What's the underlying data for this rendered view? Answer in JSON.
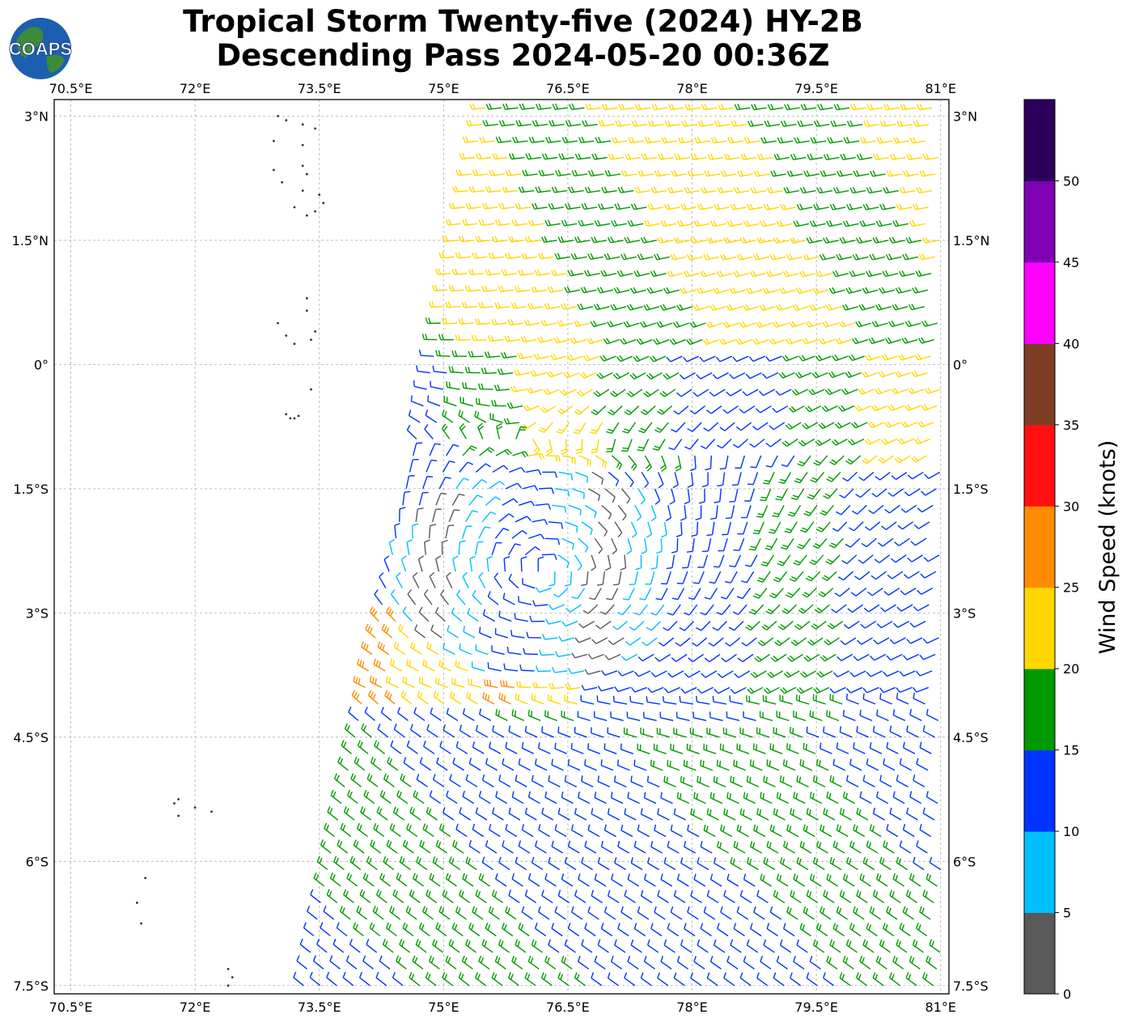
{
  "header": {
    "title_line1": "Tropical Storm Twenty-five (2024) HY-2B",
    "title_line2": "Descending Pass 2024-05-20 00:36Z",
    "logo_text": "COAPS"
  },
  "map": {
    "lon_ticks": [
      "70.5°E",
      "72°E",
      "73.5°E",
      "75°E",
      "76.5°E",
      "78°E",
      "79.5°E",
      "81°E"
    ],
    "lat_ticks": [
      "3°N",
      "1.5°N",
      "0°",
      "1.5°S",
      "3°S",
      "4.5°S",
      "6°S",
      "7.5°S"
    ],
    "lon_range": [
      70.3,
      81.1
    ],
    "lat_range": [
      -7.6,
      3.2
    ],
    "gridlines": true,
    "storm_center": {
      "lon": 76.2,
      "lat": -2.5
    },
    "swath_west_edge": {
      "north": 75.5,
      "south": 73.3
    }
  },
  "colorbar": {
    "label": "Wind Speed (knots)",
    "ticks": [
      "0",
      "5",
      "10",
      "15",
      "20",
      "25",
      "30",
      "35",
      "40",
      "45",
      "50"
    ],
    "bins": [
      {
        "range": [
          0,
          5
        ],
        "color": "#595959"
      },
      {
        "range": [
          5,
          10
        ],
        "color": "#00bfff"
      },
      {
        "range": [
          10,
          15
        ],
        "color": "#0033ff"
      },
      {
        "range": [
          15,
          20
        ],
        "color": "#009900"
      },
      {
        "range": [
          20,
          25
        ],
        "color": "#ffd700"
      },
      {
        "range": [
          25,
          30
        ],
        "color": "#ff8c00"
      },
      {
        "range": [
          30,
          35
        ],
        "color": "#ff0f0f"
      },
      {
        "range": [
          35,
          40
        ],
        "color": "#803d26"
      },
      {
        "range": [
          40,
          45
        ],
        "color": "#ff00ff"
      },
      {
        "range": [
          45,
          50
        ],
        "color": "#8000b3"
      },
      {
        "range": [
          50,
          55
        ],
        "color": "#2d005c"
      }
    ]
  },
  "legend_colors": {
    "calm": "#595959",
    "light": "#00bfff",
    "moderate": "#0033ff",
    "fresh": "#009900",
    "strong": "#ffd700",
    "gale": "#ff8c00"
  }
}
